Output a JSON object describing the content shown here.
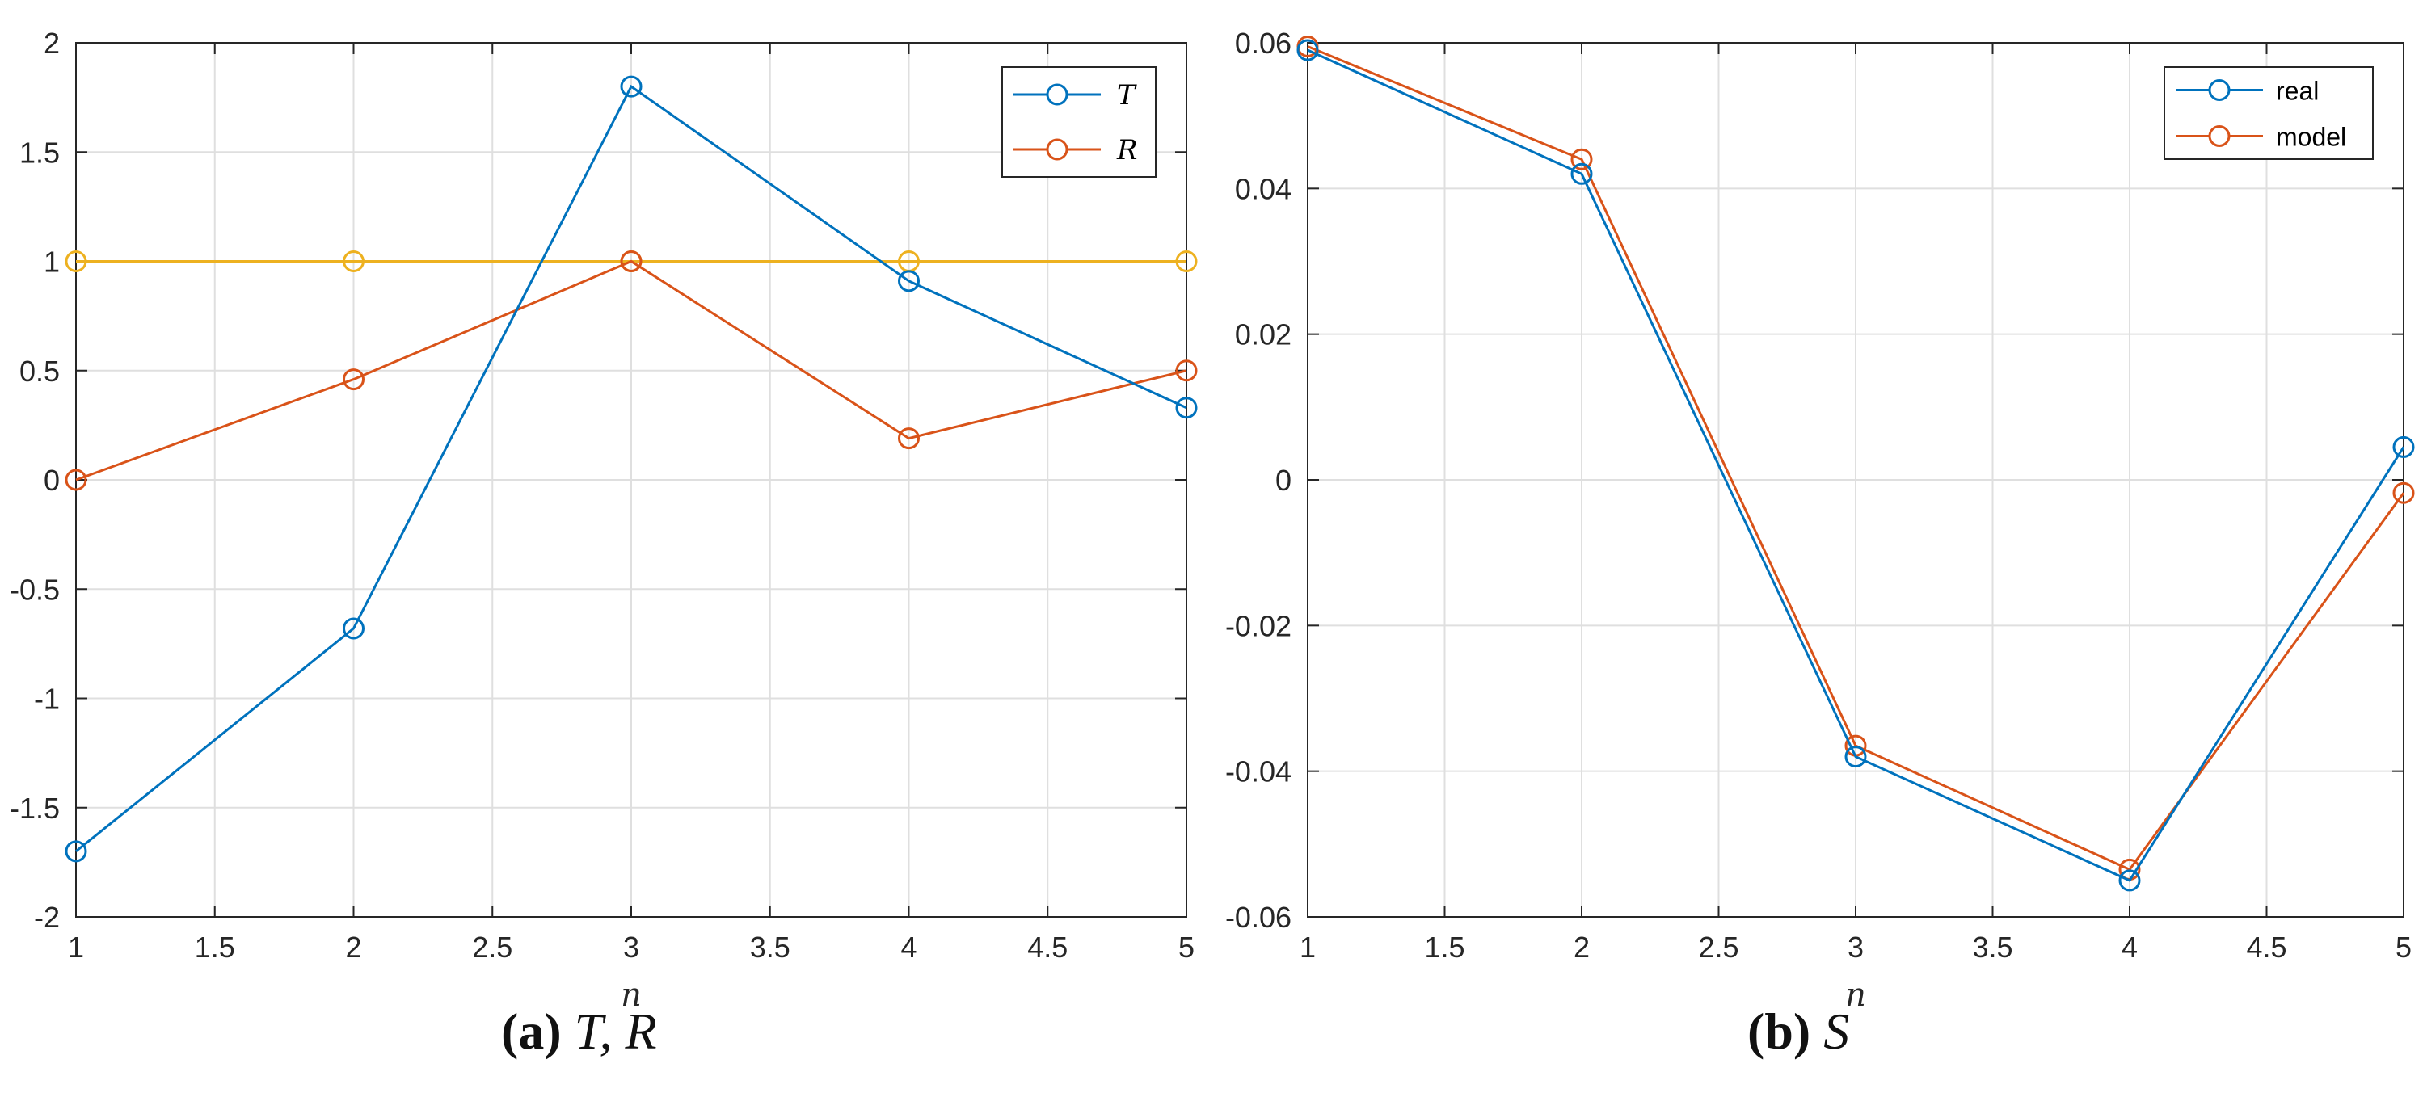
{
  "chart_data": [
    {
      "type": "line",
      "title": "",
      "xlabel": "n",
      "ylabel": "",
      "x": [
        1,
        2,
        3,
        4,
        5
      ],
      "xlim": [
        1,
        5
      ],
      "ylim": [
        -2,
        2
      ],
      "xticks": [
        1,
        1.5,
        2,
        2.5,
        3,
        3.5,
        4,
        4.5,
        5
      ],
      "xtick_labels": [
        "1",
        "1.5",
        "2",
        "2.5",
        "3",
        "3.5",
        "4",
        "4.5",
        "5"
      ],
      "yticks": [
        -2,
        -1.5,
        -1,
        -0.5,
        0,
        0.5,
        1,
        1.5,
        2
      ],
      "ytick_labels": [
        "-2",
        "-1.5",
        "-1",
        "-0.5",
        "0",
        "0.5",
        "1",
        "1.5",
        "2"
      ],
      "grid": true,
      "legend_position": "top-right",
      "series": [
        {
          "name": "T",
          "color": "#0072BD",
          "in_legend": true,
          "values": [
            -1.7,
            -0.68,
            1.8,
            0.91,
            0.33
          ]
        },
        {
          "name": "R",
          "color": "#D95319",
          "in_legend": true,
          "values": [
            0,
            0.46,
            1.0,
            0.19,
            0.5
          ]
        },
        {
          "name": "",
          "color": "#EDB120",
          "in_legend": false,
          "values": [
            1,
            1,
            1,
            1,
            1
          ]
        }
      ],
      "caption": {
        "label": "(a)",
        "text": "T, R"
      }
    },
    {
      "type": "line",
      "title": "",
      "xlabel": "n",
      "ylabel": "",
      "x": [
        1,
        2,
        3,
        4,
        5
      ],
      "xlim": [
        1,
        5
      ],
      "ylim": [
        -0.06,
        0.06
      ],
      "xticks": [
        1,
        1.5,
        2,
        2.5,
        3,
        3.5,
        4,
        4.5,
        5
      ],
      "xtick_labels": [
        "1",
        "1.5",
        "2",
        "2.5",
        "3",
        "3.5",
        "4",
        "4.5",
        "5"
      ],
      "yticks": [
        -0.06,
        -0.04,
        -0.02,
        0,
        0.02,
        0.04,
        0.06
      ],
      "ytick_labels": [
        "-0.06",
        "-0.04",
        "-0.02",
        "0",
        "0.02",
        "0.04",
        "0.06"
      ],
      "grid": true,
      "legend_position": "top-right",
      "series": [
        {
          "name": "real",
          "color": "#0072BD",
          "in_legend": true,
          "values": [
            0.059,
            0.042,
            -0.038,
            -0.055,
            0.0045
          ]
        },
        {
          "name": "model",
          "color": "#D95319",
          "in_legend": true,
          "values": [
            0.0595,
            0.044,
            -0.0365,
            -0.0535,
            -0.0018
          ]
        }
      ],
      "caption": {
        "label": "(b)",
        "text": "S"
      }
    }
  ]
}
